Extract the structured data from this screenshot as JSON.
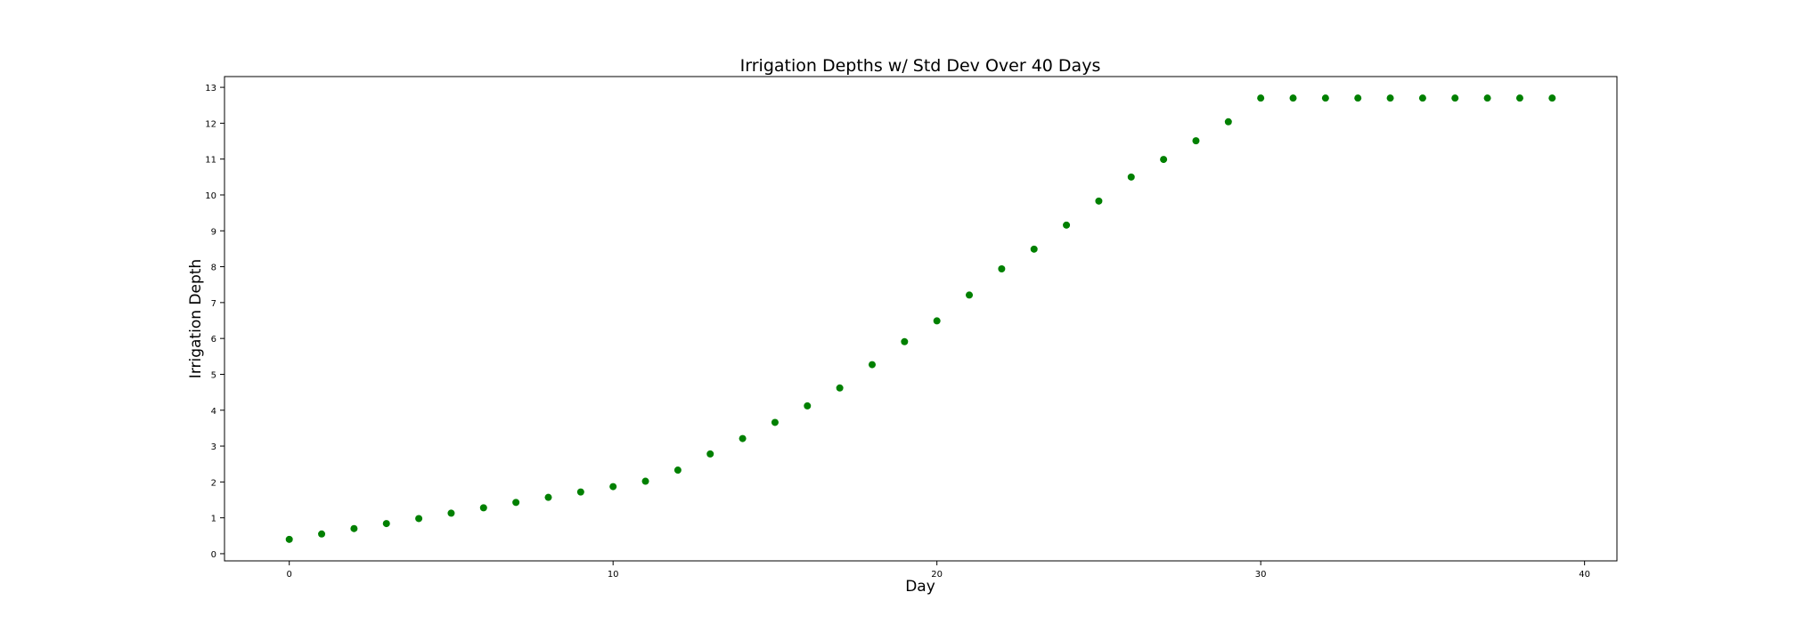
{
  "chart_data": {
    "type": "scatter",
    "title": "Irrigation Depths w/ Std Dev Over 40 Days",
    "xlabel": "Day",
    "ylabel": "Irrigation Depth",
    "xlim": [
      -2,
      41
    ],
    "ylim": [
      -0.2,
      13.3
    ],
    "xticks": [
      0,
      10,
      20,
      30,
      40
    ],
    "yticks": [
      0,
      1,
      2,
      3,
      4,
      5,
      6,
      7,
      8,
      9,
      10,
      11,
      12,
      13
    ],
    "grid": false,
    "legend": "none",
    "marker_color": "#008000",
    "series": [
      {
        "x": [
          0,
          1,
          2,
          3,
          4,
          5,
          6,
          7,
          8,
          9,
          10,
          11,
          12,
          13,
          14,
          15,
          16,
          17,
          18,
          19,
          20,
          21,
          22,
          23,
          24,
          25,
          26,
          27,
          28,
          29,
          30,
          31,
          32,
          33,
          34,
          35,
          36,
          37,
          38,
          39
        ],
        "y": [
          0.4,
          0.55,
          0.7,
          0.84,
          0.98,
          1.13,
          1.28,
          1.43,
          1.57,
          1.72,
          1.87,
          2.02,
          2.33,
          2.78,
          3.21,
          3.66,
          4.12,
          4.62,
          5.27,
          5.91,
          6.49,
          7.21,
          7.94,
          8.49,
          9.16,
          9.83,
          10.5,
          10.99,
          11.51,
          12.04,
          12.7,
          12.7,
          12.7,
          12.7,
          12.7,
          12.7,
          12.7,
          12.7,
          12.7,
          12.7
        ]
      }
    ]
  }
}
